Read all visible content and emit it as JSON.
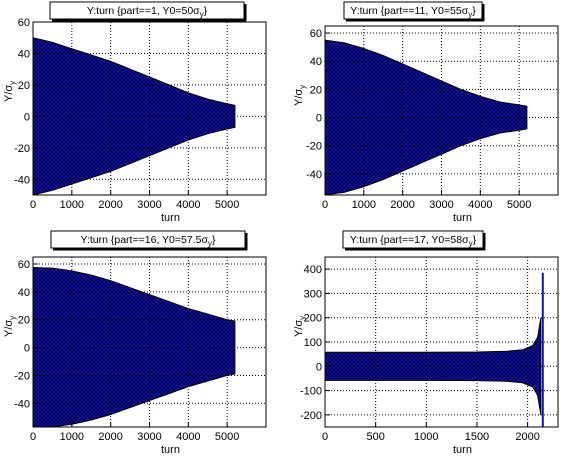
{
  "chart_data": [
    {
      "type": "scatter",
      "title": "Y:turn {part==1, Y0=50σ_y}",
      "title_main": "Y:turn {part==1, Y0=50σ",
      "title_sub": "y",
      "title_end": "}",
      "xlabel": "turn",
      "ylabel_main": "Y/σ",
      "ylabel_sub": "y",
      "xlim": [
        0,
        6000
      ],
      "ylim": [
        -50,
        60
      ],
      "xticks": [
        0,
        1000,
        2000,
        3000,
        4000,
        5000
      ],
      "yticks": [
        -40,
        -20,
        0,
        20,
        40,
        60
      ],
      "grid": true,
      "series": [
        {
          "values": [
            {
              "x": 0,
              "amplitude": 50
            },
            {
              "x": 500,
              "amplitude": 47
            },
            {
              "x": 1000,
              "amplitude": 43
            },
            {
              "x": 1500,
              "amplitude": 39
            },
            {
              "x": 2000,
              "amplitude": 35
            },
            {
              "x": 2500,
              "amplitude": 30
            },
            {
              "x": 3000,
              "amplitude": 25
            },
            {
              "x": 3500,
              "amplitude": 20
            },
            {
              "x": 4000,
              "amplitude": 15
            },
            {
              "x": 4500,
              "amplitude": 11
            },
            {
              "x": 5000,
              "amplitude": 8
            },
            {
              "x": 5200,
              "amplitude": 7
            }
          ]
        }
      ],
      "colors": {
        "fill": "#1010c8",
        "edge": "#000000",
        "grid": "#000000"
      }
    },
    {
      "type": "scatter",
      "title": "Y:turn {part==11, Y0=55σ_y}",
      "title_main": "Y:turn {part==11, Y0=55σ",
      "title_sub": "y",
      "title_end": "}",
      "xlabel": "turn",
      "ylabel_main": "Y/σ",
      "ylabel_sub": "y",
      "xlim": [
        0,
        6000
      ],
      "ylim": [
        -55,
        65
      ],
      "xticks": [
        0,
        1000,
        2000,
        3000,
        4000,
        5000
      ],
      "yticks": [
        -40,
        -20,
        0,
        20,
        40,
        60
      ],
      "grid": true,
      "series": [
        {
          "values": [
            {
              "x": 0,
              "amplitude": 55
            },
            {
              "x": 500,
              "amplitude": 53
            },
            {
              "x": 1000,
              "amplitude": 49
            },
            {
              "x": 1500,
              "amplitude": 44
            },
            {
              "x": 2000,
              "amplitude": 38
            },
            {
              "x": 2500,
              "amplitude": 32
            },
            {
              "x": 3000,
              "amplitude": 26
            },
            {
              "x": 3500,
              "amplitude": 20
            },
            {
              "x": 4000,
              "amplitude": 15
            },
            {
              "x": 4500,
              "amplitude": 11
            },
            {
              "x": 5000,
              "amplitude": 9
            },
            {
              "x": 5200,
              "amplitude": 8
            }
          ]
        }
      ],
      "colors": {
        "fill": "#1010c8",
        "edge": "#000000",
        "grid": "#000000"
      }
    },
    {
      "type": "scatter",
      "title": "Y:turn {part==16, Y0=57.5σ_y}",
      "title_main": "Y:turn {part==16, Y0=57.5σ",
      "title_sub": "y",
      "title_end": "}",
      "xlabel": "turn",
      "ylabel_main": "Y/σ",
      "ylabel_sub": "y",
      "xlim": [
        0,
        6000
      ],
      "ylim": [
        -57,
        65
      ],
      "xticks": [
        0,
        1000,
        2000,
        3000,
        4000,
        5000
      ],
      "yticks": [
        -40,
        -20,
        0,
        20,
        40,
        60
      ],
      "grid": true,
      "series": [
        {
          "values": [
            {
              "x": 0,
              "amplitude": 57.5
            },
            {
              "x": 500,
              "amplitude": 57
            },
            {
              "x": 1000,
              "amplitude": 55
            },
            {
              "x": 1500,
              "amplitude": 52
            },
            {
              "x": 2000,
              "amplitude": 48
            },
            {
              "x": 2500,
              "amplitude": 43
            },
            {
              "x": 3000,
              "amplitude": 38
            },
            {
              "x": 3500,
              "amplitude": 33
            },
            {
              "x": 4000,
              "amplitude": 28
            },
            {
              "x": 4500,
              "amplitude": 24
            },
            {
              "x": 5000,
              "amplitude": 20
            },
            {
              "x": 5200,
              "amplitude": 19
            }
          ]
        }
      ],
      "colors": {
        "fill": "#1010c8",
        "edge": "#000000",
        "grid": "#000000"
      }
    },
    {
      "type": "scatter",
      "title": "Y:turn {part==17, Y0=58σ_y}",
      "title_main": "Y:turn {part==17, Y0=58σ",
      "title_sub": "y",
      "title_end": "}",
      "xlabel": "turn",
      "ylabel_main": "Y/σ",
      "ylabel_sub": "y",
      "xlim": [
        0,
        2300
      ],
      "ylim": [
        -250,
        450
      ],
      "xticks": [
        0,
        500,
        1000,
        1500,
        2000
      ],
      "yticks": [
        -200,
        -100,
        0,
        100,
        200,
        300,
        400
      ],
      "grid": true,
      "series": [
        {
          "values": [
            {
              "x": 0,
              "amplitude": 58
            },
            {
              "x": 500,
              "amplitude": 58
            },
            {
              "x": 1000,
              "amplitude": 58
            },
            {
              "x": 1500,
              "amplitude": 59
            },
            {
              "x": 1800,
              "amplitude": 62
            },
            {
              "x": 1950,
              "amplitude": 68
            },
            {
              "x": 2050,
              "amplitude": 85
            },
            {
              "x": 2100,
              "amplitude": 120
            },
            {
              "x": 2130,
              "amplitude": 200
            }
          ]
        }
      ],
      "spike": {
        "x": 2150,
        "ymin": -250,
        "ymax": 385
      },
      "colors": {
        "fill": "#1010c8",
        "edge": "#000000",
        "grid": "#000000"
      }
    }
  ]
}
